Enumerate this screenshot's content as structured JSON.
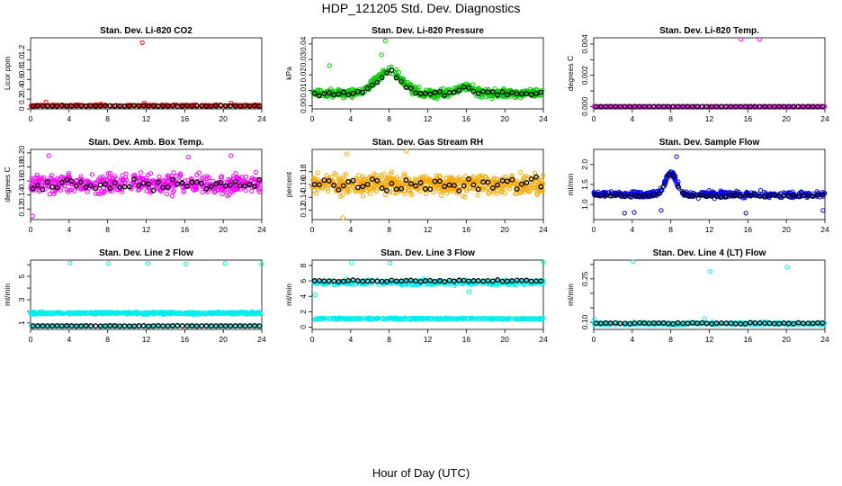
{
  "main_title": "HDP_121205  Std. Dev. Diagnostics",
  "x_axis_title": "Hour of Day (UTC)",
  "chart_data": [
    {
      "type": "scatter",
      "title": "Stan. Dev. Li-820 CO2",
      "ylabel": "Licor ppm",
      "xlim": [
        0,
        24
      ],
      "ylim": [
        0,
        1.45
      ],
      "xticks": [
        0,
        4,
        8,
        12,
        16,
        20,
        24
      ],
      "yticks": [
        0,
        0.2,
        0.4,
        0.6,
        0.8,
        1.0,
        1.2
      ],
      "ytick_labels": [
        "0",
        "0.2",
        "0.4",
        "0.6",
        "0.8",
        "1.0",
        "1.2"
      ],
      "series": [
        {
          "name": "all",
          "color": "#ff0000",
          "base": 0.07,
          "spread": 0.02,
          "n": 240,
          "outliers": [
            [
              11.6,
              1.35
            ],
            [
              1.6,
              0.14
            ],
            [
              11.8,
              0.12
            ],
            [
              20.8,
              0.12
            ],
            [
              7.3,
              0.1
            ]
          ]
        },
        {
          "name": "hourly",
          "color": "#000000",
          "base": 0.06,
          "spread": 0.01,
          "n": 48,
          "outliers": []
        }
      ]
    },
    {
      "type": "scatter",
      "title": "Stan. Dev. Li-820 Pressure",
      "ylabel": "kPa",
      "xlim": [
        0,
        24
      ],
      "ylim": [
        -0.002,
        0.044
      ],
      "xticks": [
        0,
        4,
        8,
        12,
        16,
        20,
        24
      ],
      "yticks": [
        0,
        0.01,
        0.02,
        0.03,
        0.04
      ],
      "ytick_labels": [
        "0.00",
        "0.01",
        "0.02",
        "0.03",
        "0.04"
      ],
      "series": [
        {
          "name": "all",
          "color": "#00cc00",
          "base": 0.008,
          "spread": 0.004,
          "n": 520,
          "hump": [
            8,
            0.015,
            1.8
          ],
          "hump2": [
            16,
            0.005,
            1.0
          ],
          "outliers": [
            [
              7.6,
              0.042
            ],
            [
              1.8,
              0.026
            ],
            [
              7.2,
              0.033
            ]
          ]
        },
        {
          "name": "hourly",
          "color": "#000000",
          "base": 0.008,
          "spread": 0.002,
          "n": 48,
          "hump": [
            8,
            0.014,
            1.6
          ],
          "hump2": [
            16,
            0.004,
            1.0
          ],
          "outliers": []
        }
      ]
    },
    {
      "type": "scatter",
      "title": "Stan. Dev. Li-820 Temp.",
      "ylabel": "degrees C",
      "xlim": [
        0,
        24
      ],
      "ylim": [
        -0.00015,
        0.0044
      ],
      "xticks": [
        0,
        4,
        8,
        12,
        16,
        20,
        24
      ],
      "yticks": [
        0,
        0.001,
        0.002,
        0.003,
        0.004
      ],
      "ytick_labels": [
        "0.000",
        "",
        "0.002",
        "",
        "0.004"
      ],
      "series": [
        {
          "name": "all",
          "color": "#ff00ff",
          "base": 0,
          "spread": 0,
          "n": 300,
          "outliers": [
            [
              15.3,
              0.0043
            ],
            [
              17.2,
              0.0043
            ]
          ]
        },
        {
          "name": "hourly",
          "color": "#000000",
          "base": 0,
          "spread": 0,
          "n": 48,
          "outliers": []
        }
      ]
    },
    {
      "type": "scatter",
      "title": "Stan. Dev. Amb. Box Temp.",
      "ylabel": "degrees C",
      "xlim": [
        0,
        24
      ],
      "ylim": [
        0.105,
        0.205
      ],
      "xticks": [
        0,
        4,
        8,
        12,
        16,
        20,
        24
      ],
      "yticks": [
        0.12,
        0.14,
        0.16,
        0.18,
        0.2
      ],
      "ytick_labels": [
        "0.12",
        "0.14",
        "0.16",
        "0.18",
        "0.20"
      ],
      "series": [
        {
          "name": "all",
          "color": "#ff00ff",
          "base": 0.156,
          "spread": 0.02,
          "n": 520,
          "outliers": [
            [
              0.2,
              0.11
            ],
            [
              1.9,
              0.196
            ],
            [
              16.4,
              0.194
            ],
            [
              20.8,
              0.196
            ]
          ]
        },
        {
          "name": "hourly",
          "color": "#000000",
          "base": 0.156,
          "spread": 0.012,
          "n": 48,
          "outliers": []
        }
      ]
    },
    {
      "type": "scatter",
      "title": "Stan. Dev. Gas Stream RH",
      "ylabel": "percent",
      "xlim": [
        0,
        24
      ],
      "ylim": [
        0.105,
        0.215
      ],
      "xticks": [
        0,
        4,
        8,
        12,
        16,
        20,
        24
      ],
      "yticks": [
        0.12,
        0.14,
        0.16,
        0.18
      ],
      "ytick_labels": [
        "0.12",
        "0.14",
        "0.16",
        "0.18"
      ],
      "series": [
        {
          "name": "all",
          "color": "#ffaa00",
          "base": 0.16,
          "spread": 0.023,
          "n": 620,
          "outliers": [
            [
              3.6,
              0.208
            ],
            [
              3.2,
              0.108
            ],
            [
              9.8,
              0.212
            ]
          ]
        },
        {
          "name": "hourly",
          "color": "#000000",
          "base": 0.16,
          "spread": 0.015,
          "n": 48,
          "outliers": []
        }
      ]
    },
    {
      "type": "scatter",
      "title": "Stan. Dev. Sample Flow",
      "ylabel": "ml/min",
      "xlim": [
        0,
        24
      ],
      "ylim": [
        0.62,
        2.38
      ],
      "xticks": [
        0,
        4,
        8,
        12,
        16,
        20,
        24
      ],
      "yticks": [
        1.0,
        1.5,
        2.0
      ],
      "ytick_labels": [
        "1.0",
        "1.5",
        "2.0"
      ],
      "series": [
        {
          "name": "all",
          "color": "#0000ee",
          "base": 1.25,
          "spread": 0.12,
          "n": 420,
          "hump": [
            8,
            0.55,
            0.8
          ],
          "outliers": [
            [
              3.2,
              0.78
            ],
            [
              4.2,
              0.8
            ],
            [
              7.0,
              0.85
            ],
            [
              15.8,
              0.78
            ],
            [
              23.8,
              0.85
            ],
            [
              8.6,
              2.2
            ]
          ]
        },
        {
          "name": "hourly",
          "color": "#000000",
          "base": 1.22,
          "spread": 0.05,
          "n": 48,
          "hump": [
            8,
            0.55,
            0.8
          ],
          "outliers": []
        }
      ]
    },
    {
      "type": "scatter",
      "title": "Stan. Dev. Line 2 Flow",
      "ylabel": "ml/min",
      "xlim": [
        0,
        24
      ],
      "ylim": [
        0.45,
        6.4
      ],
      "xticks": [
        0,
        4,
        8,
        12,
        16,
        20,
        24
      ],
      "yticks": [
        1,
        2,
        3,
        4,
        5,
        6
      ],
      "ytick_labels": [
        "1",
        "",
        "3",
        "",
        "5",
        ""
      ],
      "series": [
        {
          "name": "all",
          "color": "#00eeee",
          "base": 1.85,
          "spread": 0.14,
          "n": 520,
          "outliers": [
            [
              4.1,
              6.15
            ],
            [
              8.1,
              6.1
            ],
            [
              12.2,
              6.1
            ],
            [
              16.1,
              6.05
            ],
            [
              20.2,
              6.1
            ],
            [
              24.0,
              6.05
            ]
          ]
        },
        {
          "name": "lower",
          "color": "#00eeee",
          "base": 0.75,
          "spread": 0.03,
          "n": 160,
          "outliers": []
        },
        {
          "name": "hourly",
          "color": "#000000",
          "base": 0.75,
          "spread": 0.03,
          "n": 48,
          "outliers": []
        }
      ]
    },
    {
      "type": "scatter",
      "title": "Stan. Dev. Line 3 Flow",
      "ylabel": "ml/min",
      "xlim": [
        0,
        24
      ],
      "ylim": [
        -0.3,
        8.7
      ],
      "xticks": [
        0,
        4,
        8,
        12,
        16,
        20,
        24
      ],
      "yticks": [
        0,
        2,
        4,
        6,
        8
      ],
      "ytick_labels": [
        "0",
        "2",
        "4",
        "6",
        "8"
      ],
      "series": [
        {
          "name": "all",
          "color": "#00eeee",
          "base": 5.8,
          "spread": 0.5,
          "n": 380,
          "outliers": [
            [
              0.3,
              4.2
            ],
            [
              4.1,
              8.4
            ],
            [
              8.1,
              8.3
            ],
            [
              24.0,
              8.4
            ],
            [
              16.3,
              4.6
            ]
          ]
        },
        {
          "name": "lower",
          "color": "#00eeee",
          "base": 1.1,
          "spread": 0.15,
          "n": 330,
          "outliers": []
        },
        {
          "name": "hourly",
          "color": "#000000",
          "base": 6.0,
          "spread": 0.15,
          "n": 48,
          "outliers": []
        }
      ]
    },
    {
      "type": "scatter",
      "title": "Stan. Dev. Line 4 (LT) Flow",
      "ylabel": "ml/min",
      "xlim": [
        0,
        24
      ],
      "ylim": [
        0.075,
        0.315
      ],
      "xticks": [
        0,
        4,
        8,
        12,
        16,
        20,
        24
      ],
      "yticks": [
        0.1,
        0.15,
        0.2,
        0.25,
        0.3
      ],
      "ytick_labels": [
        "0.10",
        "",
        "",
        "0.25",
        ""
      ],
      "series": [
        {
          "name": "all",
          "color": "#00eeee",
          "base": 0.095,
          "spread": 0.007,
          "n": 320,
          "outliers": [
            [
              4.1,
              0.31
            ],
            [
              12.1,
              0.275
            ],
            [
              20.1,
              0.29
            ],
            [
              0.1,
              0.11
            ],
            [
              11.5,
              0.112
            ]
          ]
        },
        {
          "name": "hourly",
          "color": "#000000",
          "base": 0.096,
          "spread": 0.004,
          "n": 48,
          "outliers": []
        }
      ]
    }
  ]
}
